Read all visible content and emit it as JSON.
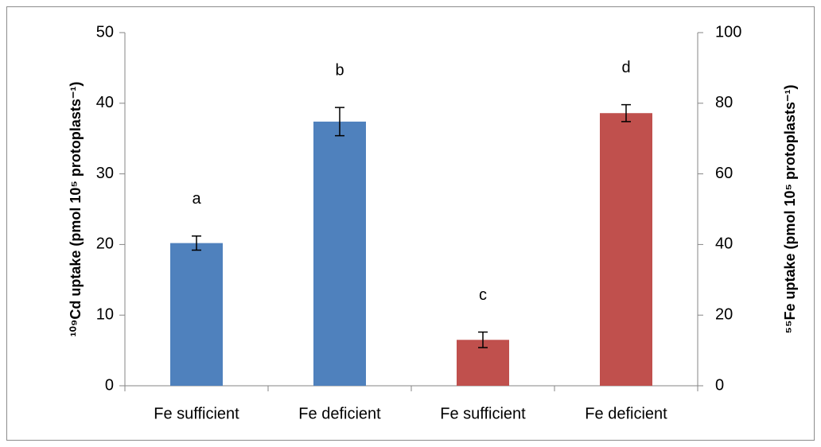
{
  "chart_data": {
    "type": "bar",
    "categories": [
      "Fe sufficient",
      "Fe deficient",
      "Fe sufficient",
      "Fe deficient"
    ],
    "ylabel": "¹⁰⁹Cd uptake (pmol 10⁵ protoplasts⁻¹)",
    "y2label": "⁵⁵Fe uptake (pmol 10⁵ protoplasts⁻¹)",
    "ylim": [
      0,
      50
    ],
    "yticks": [
      0,
      10,
      20,
      30,
      40,
      50
    ],
    "y2lim": [
      0,
      100
    ],
    "y2ticks": [
      0,
      20,
      40,
      60,
      80,
      100
    ],
    "series": [
      {
        "color": "#4f81bd",
        "values": [
          20.2,
          37.4,
          null,
          null
        ],
        "errors": [
          1.0,
          2.0,
          null,
          null
        ],
        "annotations": [
          "a",
          "b",
          null,
          null
        ]
      },
      {
        "color": "#c0504d",
        "axis": "y2",
        "values": [
          null,
          null,
          13,
          77.2
        ],
        "errors": [
          null,
          null,
          2.2,
          2.4
        ],
        "annotations": [
          null,
          null,
          "c",
          "d"
        ]
      }
    ]
  }
}
